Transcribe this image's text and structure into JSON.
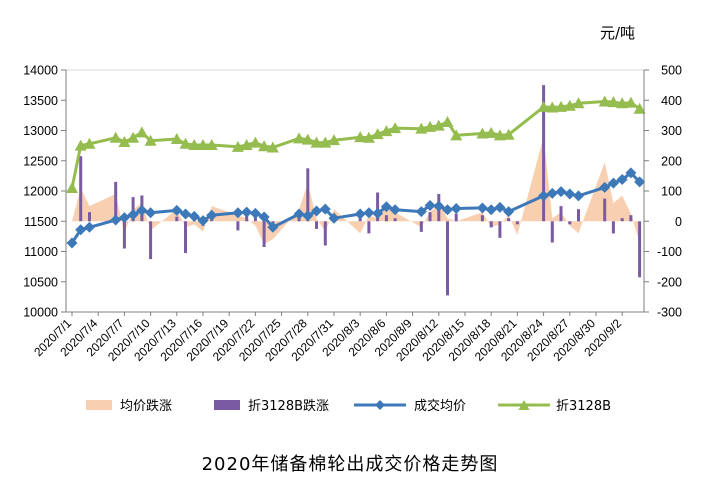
{
  "chart_data": {
    "type": "combo",
    "title": "2020年储备棉轮出成交价格走势图",
    "unit_label": "元/吨",
    "left_axis": {
      "min": 10000,
      "max": 14000,
      "ticks": [
        10000,
        10500,
        11000,
        11500,
        12000,
        12500,
        13000,
        13500,
        14000
      ]
    },
    "right_axis": {
      "min": -300,
      "max": 500,
      "ticks": [
        -300,
        -200,
        -100,
        0,
        100,
        200,
        300,
        400,
        500
      ]
    },
    "x_labels": [
      "2020/7/1",
      "2020/7/4",
      "2020/7/7",
      "2020/7/10",
      "2020/7/13",
      "2020/7/16",
      "2020/7/19",
      "2020/7/22",
      "2020/7/25",
      "2020/7/28",
      "2020/7/31",
      "2020/8/3",
      "2020/8/6",
      "2020/8/9",
      "2020/8/12",
      "2020/8/15",
      "2020/8/18",
      "2020/8/21",
      "2020/8/24",
      "2020/8/27",
      "2020/8/30",
      "2020/9/2"
    ],
    "series": [
      {
        "name": "均价跌涨",
        "kind": "area",
        "axis": "right",
        "color": "#f9cfb1",
        "points": [
          [
            "2020/7/1",
            0
          ],
          [
            "2020/7/2",
            110
          ],
          [
            "2020/7/3",
            50
          ],
          [
            "2020/7/6",
            90
          ],
          [
            "2020/7/7",
            -40
          ],
          [
            "2020/7/8",
            40
          ],
          [
            "2020/7/9",
            60
          ],
          [
            "2020/7/10",
            -30
          ],
          [
            "2020/7/13",
            40
          ],
          [
            "2020/7/14",
            -20
          ],
          [
            "2020/7/15",
            -10
          ],
          [
            "2020/7/16",
            -35
          ],
          [
            "2020/7/17",
            50
          ],
          [
            "2020/7/20",
            20
          ],
          [
            "2020/7/21",
            10
          ],
          [
            "2020/7/22",
            -15
          ],
          [
            "2020/7/23",
            -75
          ],
          [
            "2020/7/24",
            -60
          ],
          [
            "2020/7/27",
            40
          ],
          [
            "2020/7/28",
            125
          ],
          [
            "2020/7/29",
            10
          ],
          [
            "2020/7/30",
            -35
          ],
          [
            "2020/7/31",
            40
          ],
          [
            "2020/8/3",
            -40
          ],
          [
            "2020/8/4",
            20
          ],
          [
            "2020/8/5",
            10
          ],
          [
            "2020/8/6",
            60
          ],
          [
            "2020/8/7",
            30
          ],
          [
            "2020/8/10",
            -20
          ],
          [
            "2020/8/11",
            30
          ],
          [
            "2020/8/12",
            60
          ],
          [
            "2020/8/13",
            10
          ],
          [
            "2020/8/14",
            0
          ],
          [
            "2020/8/17",
            30
          ],
          [
            "2020/8/18",
            -20
          ],
          [
            "2020/8/19",
            -10
          ],
          [
            "2020/8/20",
            20
          ],
          [
            "2020/8/21",
            -45
          ],
          [
            "2020/8/24",
            280
          ],
          [
            "2020/8/25",
            10
          ],
          [
            "2020/8/26",
            30
          ],
          [
            "2020/8/27",
            -15
          ],
          [
            "2020/8/28",
            -40
          ],
          [
            "2020/8/31",
            195
          ],
          [
            "2020/9/1",
            60
          ],
          [
            "2020/9/2",
            85
          ],
          [
            "2020/9/3",
            25
          ],
          [
            "2020/9/4",
            -70
          ]
        ]
      },
      {
        "name": "折3128B跌涨",
        "kind": "bar",
        "axis": "right",
        "color": "#7a5aa3",
        "points": [
          [
            "2020/7/2",
            215
          ],
          [
            "2020/7/3",
            30
          ],
          [
            "2020/7/6",
            130
          ],
          [
            "2020/7/7",
            -90
          ],
          [
            "2020/7/8",
            80
          ],
          [
            "2020/7/9",
            85
          ],
          [
            "2020/7/10",
            -125
          ],
          [
            "2020/7/13",
            15
          ],
          [
            "2020/7/14",
            -105
          ],
          [
            "2020/7/15",
            10
          ],
          [
            "2020/7/16",
            -15
          ],
          [
            "2020/7/17",
            10
          ],
          [
            "2020/7/20",
            -30
          ],
          [
            "2020/7/21",
            25
          ],
          [
            "2020/7/22",
            15
          ],
          [
            "2020/7/23",
            -85
          ],
          [
            "2020/7/24",
            -15
          ],
          [
            "2020/7/27",
            20
          ],
          [
            "2020/7/28",
            175
          ],
          [
            "2020/7/29",
            -25
          ],
          [
            "2020/7/30",
            -80
          ],
          [
            "2020/7/31",
            25
          ],
          [
            "2020/8/3",
            10
          ],
          [
            "2020/8/4",
            -40
          ],
          [
            "2020/8/5",
            95
          ],
          [
            "2020/8/6",
            20
          ],
          [
            "2020/8/7",
            10
          ],
          [
            "2020/8/10",
            -35
          ],
          [
            "2020/8/11",
            30
          ],
          [
            "2020/8/12",
            90
          ],
          [
            "2020/8/13",
            -245
          ],
          [
            "2020/8/14",
            25
          ],
          [
            "2020/8/17",
            20
          ],
          [
            "2020/8/18",
            -20
          ],
          [
            "2020/8/19",
            -55
          ],
          [
            "2020/8/20",
            10
          ],
          [
            "2020/8/21",
            -10
          ],
          [
            "2020/8/24",
            450
          ],
          [
            "2020/8/25",
            -70
          ],
          [
            "2020/8/26",
            50
          ],
          [
            "2020/8/27",
            -10
          ],
          [
            "2020/8/28",
            40
          ],
          [
            "2020/8/31",
            75
          ],
          [
            "2020/9/1",
            -40
          ],
          [
            "2020/9/2",
            10
          ],
          [
            "2020/9/3",
            20
          ],
          [
            "2020/9/4",
            -185
          ]
        ]
      },
      {
        "name": "成交均价",
        "kind": "line",
        "axis": "left",
        "color": "#3d78b8",
        "points": [
          [
            "2020/7/1",
            11140
          ],
          [
            "2020/7/2",
            11360
          ],
          [
            "2020/7/3",
            11400
          ],
          [
            "2020/7/6",
            11520
          ],
          [
            "2020/7/7",
            11560
          ],
          [
            "2020/7/8",
            11610
          ],
          [
            "2020/7/9",
            11680
          ],
          [
            "2020/7/10",
            11640
          ],
          [
            "2020/7/13",
            11680
          ],
          [
            "2020/7/14",
            11620
          ],
          [
            "2020/7/15",
            11580
          ],
          [
            "2020/7/16",
            11510
          ],
          [
            "2020/7/17",
            11600
          ],
          [
            "2020/7/20",
            11640
          ],
          [
            "2020/7/21",
            11650
          ],
          [
            "2020/7/22",
            11630
          ],
          [
            "2020/7/23",
            11570
          ],
          [
            "2020/7/24",
            11400
          ],
          [
            "2020/7/27",
            11620
          ],
          [
            "2020/7/28",
            11590
          ],
          [
            "2020/7/29",
            11670
          ],
          [
            "2020/7/30",
            11700
          ],
          [
            "2020/7/31",
            11550
          ],
          [
            "2020/8/3",
            11620
          ],
          [
            "2020/8/4",
            11640
          ],
          [
            "2020/8/5",
            11630
          ],
          [
            "2020/8/6",
            11740
          ],
          [
            "2020/8/7",
            11690
          ],
          [
            "2020/8/10",
            11660
          ],
          [
            "2020/8/11",
            11760
          ],
          [
            "2020/8/12",
            11750
          ],
          [
            "2020/8/13",
            11690
          ],
          [
            "2020/8/14",
            11710
          ],
          [
            "2020/8/17",
            11720
          ],
          [
            "2020/8/18",
            11690
          ],
          [
            "2020/8/19",
            11730
          ],
          [
            "2020/8/20",
            11660
          ],
          [
            "2020/8/24",
            11920
          ],
          [
            "2020/8/25",
            11960
          ],
          [
            "2020/8/26",
            11990
          ],
          [
            "2020/8/27",
            11950
          ],
          [
            "2020/8/28",
            11920
          ],
          [
            "2020/8/31",
            12060
          ],
          [
            "2020/9/1",
            12130
          ],
          [
            "2020/9/2",
            12190
          ],
          [
            "2020/9/3",
            12300
          ],
          [
            "2020/9/4",
            12150
          ]
        ]
      },
      {
        "name": "折3128B",
        "kind": "line",
        "axis": "left",
        "color": "#94bc4e",
        "points": [
          [
            "2020/7/1",
            12050
          ],
          [
            "2020/7/2",
            12750
          ],
          [
            "2020/7/3",
            12780
          ],
          [
            "2020/7/6",
            12880
          ],
          [
            "2020/7/7",
            12810
          ],
          [
            "2020/7/8",
            12880
          ],
          [
            "2020/7/9",
            12970
          ],
          [
            "2020/7/10",
            12830
          ],
          [
            "2020/7/13",
            12860
          ],
          [
            "2020/7/14",
            12780
          ],
          [
            "2020/7/15",
            12760
          ],
          [
            "2020/7/16",
            12760
          ],
          [
            "2020/7/17",
            12760
          ],
          [
            "2020/7/20",
            12730
          ],
          [
            "2020/7/21",
            12760
          ],
          [
            "2020/7/22",
            12800
          ],
          [
            "2020/7/23",
            12740
          ],
          [
            "2020/7/24",
            12720
          ],
          [
            "2020/7/27",
            12870
          ],
          [
            "2020/7/28",
            12850
          ],
          [
            "2020/7/29",
            12800
          ],
          [
            "2020/7/30",
            12800
          ],
          [
            "2020/7/31",
            12840
          ],
          [
            "2020/8/3",
            12890
          ],
          [
            "2020/8/4",
            12880
          ],
          [
            "2020/8/5",
            12940
          ],
          [
            "2020/8/6",
            12990
          ],
          [
            "2020/8/7",
            13040
          ],
          [
            "2020/8/10",
            13030
          ],
          [
            "2020/8/11",
            13060
          ],
          [
            "2020/8/12",
            13080
          ],
          [
            "2020/8/13",
            13140
          ],
          [
            "2020/8/14",
            12920
          ],
          [
            "2020/8/17",
            12950
          ],
          [
            "2020/8/18",
            12960
          ],
          [
            "2020/8/19",
            12920
          ],
          [
            "2020/8/20",
            12930
          ],
          [
            "2020/8/24",
            13390
          ],
          [
            "2020/8/25",
            13380
          ],
          [
            "2020/8/26",
            13390
          ],
          [
            "2020/8/27",
            13410
          ],
          [
            "2020/8/28",
            13450
          ],
          [
            "2020/8/31",
            13480
          ],
          [
            "2020/9/1",
            13470
          ],
          [
            "2020/9/2",
            13450
          ],
          [
            "2020/9/3",
            13460
          ],
          [
            "2020/9/4",
            13360
          ]
        ]
      }
    ]
  }
}
